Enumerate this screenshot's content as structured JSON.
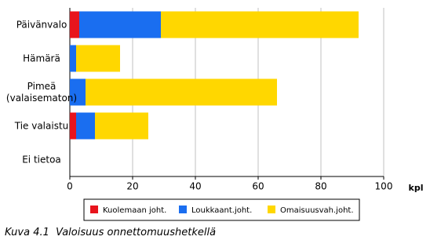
{
  "chart_data": {
    "type": "bar",
    "orientation": "horizontal",
    "stacked": true,
    "title": "Kuva 4.1  Valoisuus onnettomuushetkellä",
    "xlabel": "kpl",
    "categories": [
      "Päivänvalo",
      "Hämärä",
      "Pimeä\n(valaisematon)",
      "Tie valaistu",
      "Ei tietoa"
    ],
    "series": [
      {
        "name": "Kuolemaan joht.",
        "color": "#e8141c",
        "values": [
          3,
          0,
          0,
          2,
          0
        ]
      },
      {
        "name": "Loukkaant.joht.",
        "color": "#1a6ef0",
        "values": [
          26,
          2,
          5,
          6,
          0
        ]
      },
      {
        "name": "Omaisuusvah.joht.",
        "color": "#ffd700",
        "values": [
          63,
          14,
          61,
          17,
          0
        ]
      }
    ],
    "xlim": [
      0,
      100
    ],
    "xticks": [
      0,
      20,
      40,
      60,
      80,
      100
    ],
    "grid": true
  }
}
